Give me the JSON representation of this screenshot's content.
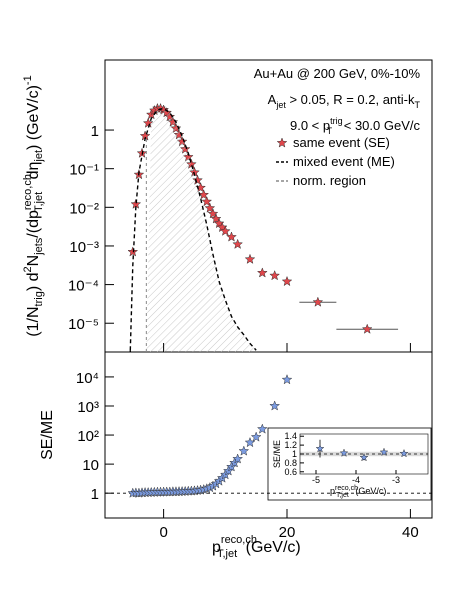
{
  "chart_data": [
    {
      "type": "scatter",
      "log_y": true,
      "y_label": [
        "(1/N",
        "trig",
        ") d",
        "2",
        "N",
        "jets",
        "/(dp",
        "reco,ch",
        "T,jet",
        " dη",
        "jet",
        ") (GeV/c)",
        "-1"
      ],
      "annotations": [
        [
          "Au+Au @ 200 GeV, 0%-10%"
        ],
        [
          "A",
          "jet",
          " > 0.05, R = 0.2, anti-k",
          "T"
        ],
        [
          "9.0 < p",
          "trig",
          "T",
          " < 30.0 GeV/c"
        ]
      ],
      "xlim": [
        -9.5,
        43.5
      ],
      "ylim": [
        1.8e-06,
        65
      ],
      "yticks": [
        {
          "value": 1e-05,
          "label": "10⁻⁵"
        },
        {
          "value": 0.0001,
          "label": "10⁻⁴"
        },
        {
          "value": 0.001,
          "label": "10⁻³"
        },
        {
          "value": 0.01,
          "label": "10⁻²"
        },
        {
          "value": 0.1,
          "label": "10⁻¹"
        },
        1
      ],
      "norm_region": -2.8,
      "series": [
        {
          "name": "same event (SE)",
          "color": "#e0474c",
          "marker": "star",
          "x": [
            -5,
            -4.5,
            -4,
            -3.5,
            -3,
            -2.5,
            -2,
            -1.5,
            -1,
            -0.5,
            0,
            0.5,
            1,
            1.5,
            2,
            2.5,
            3,
            3.5,
            4,
            4.5,
            5,
            5.5,
            6,
            6.5,
            7,
            7.5,
            8,
            8.5,
            9,
            9.5,
            10,
            11,
            12,
            14,
            16,
            18,
            20,
            25,
            33
          ],
          "values": [
            0.0007,
            0.012,
            0.07,
            0.25,
            0.7,
            1.5,
            2.5,
            3.2,
            3.6,
            3.6,
            3.3,
            2.8,
            2.2,
            1.6,
            1.1,
            0.75,
            0.5,
            0.32,
            0.2,
            0.13,
            0.08,
            0.05,
            0.032,
            0.021,
            0.014,
            0.0095,
            0.0068,
            0.005,
            0.0038,
            0.003,
            0.0024,
            0.0017,
            0.0011,
            0.00045,
            0.0002,
            0.00017,
            0.00012,
            3.5e-05,
            7e-06
          ],
          "x_errors": [
            null,
            null,
            null,
            null,
            null,
            null,
            null,
            null,
            null,
            null,
            null,
            null,
            null,
            null,
            null,
            null,
            null,
            null,
            null,
            null,
            null,
            null,
            null,
            null,
            null,
            null,
            null,
            null,
            null,
            null,
            null,
            null,
            null,
            null,
            null,
            null,
            null,
            3,
            5
          ]
        },
        {
          "name": "mixed event (ME)",
          "color": "#000000",
          "style": "dashed",
          "x": [
            -5.4,
            -5,
            -4.5,
            -4,
            -3,
            -2,
            -1,
            0,
            1,
            2,
            3,
            4,
            5,
            6,
            7,
            8,
            9,
            10,
            11,
            12,
            13,
            14,
            15
          ],
          "values": [
            2e-06,
            0.0003,
            0.01,
            0.08,
            0.6,
            2,
            3.3,
            3.6,
            2.8,
            1.6,
            0.7,
            0.25,
            0.07,
            0.017,
            0.0035,
            0.0006,
            0.00012,
            4e-05,
            1.5e-05,
            8e-06,
            5e-06,
            3e-06,
            2e-06
          ]
        },
        {
          "name": "norm. region",
          "color": "#888888",
          "style": "dashed"
        }
      ]
    },
    {
      "type": "scatter",
      "log_y": true,
      "y_label": "SE/ME",
      "x_label": [
        "p",
        "reco,ch",
        "T,jet",
        "  (GeV/c)"
      ],
      "xlim": [
        -9.5,
        43.5
      ],
      "xticks": [
        0,
        20,
        40
      ],
      "ylim": [
        0.14,
        72000
      ],
      "yticks": [
        1,
        10,
        {
          "value": 100,
          "label": "10²"
        },
        {
          "value": 1000,
          "label": "10³"
        },
        {
          "value": 10000,
          "label": "10⁴"
        }
      ],
      "reference_line": 1,
      "series": [
        {
          "color": "#7b9be0",
          "marker": "star",
          "x": [
            -5,
            -4.5,
            -4,
            -3.5,
            -3,
            -2.5,
            -2,
            -1.5,
            -1,
            -0.5,
            0,
            0.5,
            1,
            1.5,
            2,
            2.5,
            3,
            3.5,
            4,
            4.5,
            5,
            5.5,
            6,
            6.5,
            7,
            7.5,
            8,
            8.5,
            9,
            9.5,
            10,
            10.5,
            11,
            11.5,
            12,
            13,
            14,
            15,
            16,
            18,
            20
          ],
          "values": [
            1.0,
            1.02,
            1.0,
            1.03,
            1.05,
            1.05,
            1.06,
            1.07,
            1.08,
            1.08,
            1.09,
            1.1,
            1.1,
            1.12,
            1.12,
            1.13,
            1.14,
            1.15,
            1.17,
            1.18,
            1.2,
            1.23,
            1.27,
            1.33,
            1.42,
            1.55,
            1.75,
            2.1,
            2.6,
            3.3,
            4.3,
            5.8,
            8,
            11,
            15,
            28,
            55,
            85,
            160,
            1000,
            8000
          ]
        }
      ]
    },
    {
      "type": "scatter",
      "log_y": false,
      "y_label": "SE/ME",
      "x_label": [
        "p",
        "reco,ch",
        "T,jet",
        " (GeV/c)"
      ],
      "xlim": [
        -5.4,
        -2.2
      ],
      "xticks": [
        -5,
        -4,
        -3
      ],
      "ylim": [
        0.55,
        1.45
      ],
      "yticks": [
        0.6,
        0.8,
        1,
        1.2,
        1.4
      ],
      "band": [
        0.95,
        1.05
      ],
      "reference_line": 1,
      "series": [
        {
          "color": "#7b9be0",
          "marker": "star",
          "x": [
            -4.9,
            -4.3,
            -3.8,
            -3.3,
            -2.8
          ],
          "values": [
            1.12,
            1.02,
            0.92,
            1.04,
            1.01
          ],
          "errors": [
            0.2,
            0.05,
            0.06,
            0.05,
            0.04
          ]
        }
      ]
    }
  ]
}
